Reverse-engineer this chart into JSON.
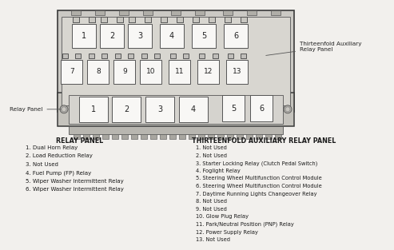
{
  "bg_color": "#f2f0ed",
  "relay_panel_label": "RELAY PANEL",
  "relay_panel_items": [
    "1. Dual Horn Relay",
    "2. Load Reduction Relay",
    "3. Not Used",
    "4. Fuel Pump (FP) Relay",
    "5. Wiper Washer Intermittent Relay",
    "6. Wiper Washer Intermittent Relay"
  ],
  "thirteenfold_label": "THIRTEENFOLD AUXILIARY RELAY PANEL",
  "thirteenfold_items": [
    "1. Not Used",
    "2. Not Used",
    "3. Starter Locking Relay (Clutch Pedal Switch)",
    "4. Foglight Relay",
    "5. Steering Wheel Multifunction Control Module",
    "6. Steering Wheel Multifunction Control Module",
    "7. Daytime Running Lights Changeover Relay",
    "8. Not Used",
    "9. Not Used",
    "10. Glow Plug Relay",
    "11. Park/Neutral Position (PNP) Relay",
    "12. Power Supply Relay",
    "13. Not Used"
  ],
  "callout_thirteenfold": "Thirteenfold Auxiliary\nRelay Panel",
  "callout_relay": "Relay Panel",
  "box_fill": "#f8f7f5",
  "box_edge": "#555555",
  "panel_fill": "#e0ddd8",
  "panel_edge": "#444444",
  "top_row_numbers": [
    "1",
    "2",
    "3",
    "4",
    "5",
    "6"
  ],
  "bottom_row_numbers": [
    "7",
    "8",
    "9",
    "10",
    "11",
    "12",
    "13"
  ],
  "lower_row_numbers": [
    "1",
    "2",
    "3",
    "4",
    "5",
    "6"
  ]
}
